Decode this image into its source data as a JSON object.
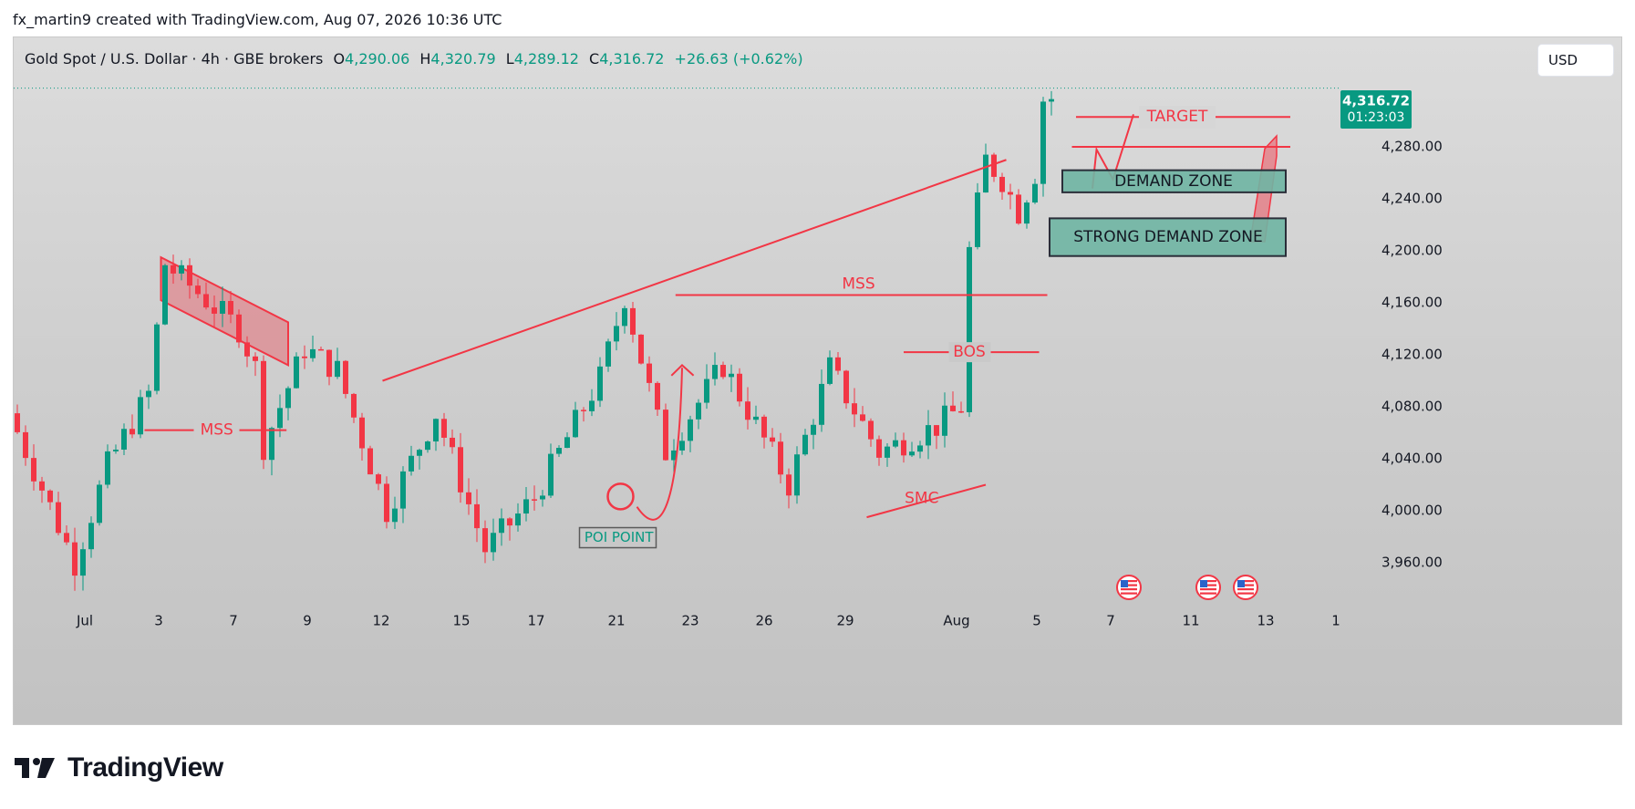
{
  "credit": "fx_martin9 created with TradingView.com, Aug 07, 2026 10:36 UTC",
  "header": {
    "symbol": "Gold Spot / U.S. Dollar · 4h · GBE brokers",
    "o_label": "O",
    "o_value": "4,290.06",
    "h_label": "H",
    "h_value": "4,320.79",
    "l_label": "L",
    "l_value": "4,289.12",
    "c_label": "C",
    "c_value": "4,316.72",
    "change": "+26.63 (+0.62%)"
  },
  "currency_button": "USD",
  "price_tag": {
    "price": "4,316.72",
    "countdown": "01:23:03"
  },
  "footer": {
    "brand": "TradingView"
  },
  "colors": {
    "up": "#089981",
    "down": "#f23645",
    "annotation": "#f23645",
    "zone_fill": "#6fb5a3",
    "zone_border": "#2a2e39"
  },
  "chart_data": {
    "type": "candlestick",
    "ylim": [
      3930,
      4330
    ],
    "y_ticks": [
      "4,280.00",
      "4,240.00",
      "4,200.00",
      "4,160.00",
      "4,120.00",
      "4,080.00",
      "4,040.00",
      "4,000.00",
      "3,960.00"
    ],
    "y_tick_values": [
      4280,
      4240,
      4200,
      4160,
      4120,
      4080,
      4040,
      4000,
      3960
    ],
    "x_ticks": [
      "Jul",
      "3",
      "7",
      "9",
      "12",
      "15",
      "17",
      "21",
      "23",
      "26",
      "29",
      "Aug",
      "5",
      "7",
      "11",
      "13",
      "1"
    ],
    "last_price": 4316.72,
    "key_prices": [
      {
        "t": 0,
        "p": 4075
      },
      {
        "t": 8,
        "p": 3960
      },
      {
        "t": 12,
        "p": 4035
      },
      {
        "t": 17,
        "p": 4090
      },
      {
        "t": 19,
        "p": 4190
      },
      {
        "t": 28,
        "p": 4140
      },
      {
        "t": 30,
        "p": 4110
      },
      {
        "t": 31,
        "p": 4050
      },
      {
        "t": 36,
        "p": 4125
      },
      {
        "t": 40,
        "p": 4108
      },
      {
        "t": 46,
        "p": 4000
      },
      {
        "t": 52,
        "p": 4075
      },
      {
        "t": 58,
        "p": 3970
      },
      {
        "t": 64,
        "p": 4010
      },
      {
        "t": 72,
        "p": 4102
      },
      {
        "t": 75,
        "p": 4165
      },
      {
        "t": 80,
        "p": 4045
      },
      {
        "t": 87,
        "p": 4112
      },
      {
        "t": 95,
        "p": 4020
      },
      {
        "t": 100,
        "p": 4110
      },
      {
        "t": 106,
        "p": 4045
      },
      {
        "t": 113,
        "p": 4065
      },
      {
        "t": 116,
        "p": 4080
      },
      {
        "t": 117,
        "p": 4200
      },
      {
        "t": 119,
        "p": 4270
      },
      {
        "t": 121,
        "p": 4255
      },
      {
        "t": 123,
        "p": 4230
      },
      {
        "t": 125,
        "p": 4260
      },
      {
        "t": 126,
        "p": 4316.72
      }
    ],
    "annotations": [
      {
        "type": "label",
        "text": "MSS"
      },
      {
        "type": "label",
        "text": "MSS"
      },
      {
        "type": "label",
        "text": "BOS"
      },
      {
        "type": "label",
        "text": "SMC"
      },
      {
        "type": "label",
        "text": "POI POINT"
      },
      {
        "type": "label",
        "text": "TARGET"
      },
      {
        "type": "zone",
        "text": "DEMAND ZONE",
        "price_low": 4245,
        "price_high": 4262
      },
      {
        "type": "zone",
        "text": "STRONG DEMAND ZONE",
        "price_low": 4196,
        "price_high": 4225
      }
    ]
  }
}
